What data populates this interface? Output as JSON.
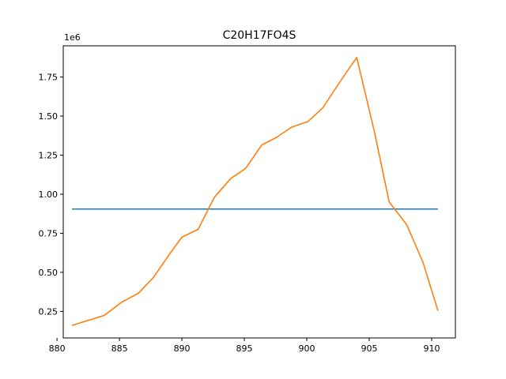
{
  "chart_data": {
    "type": "line",
    "title": "C20H17FO4S",
    "xlabel": "",
    "ylabel": "",
    "y_offset_label": "1e6",
    "xlim": [
      880.5,
      911.9
    ],
    "ylim": [
      0.08,
      1.95
    ],
    "x_ticks": [
      880,
      885,
      890,
      895,
      900,
      905,
      910
    ],
    "y_ticks": [
      0.25,
      0.5,
      0.75,
      1.0,
      1.25,
      1.5,
      1.75
    ],
    "y_tick_labels": [
      "0.25",
      "0.50",
      "0.75",
      "1.00",
      "1.25",
      "1.50",
      "1.75"
    ],
    "grid": false,
    "series": [
      {
        "color": "#1f77b4",
        "x": [
          881.2,
          910.5
        ],
        "y": [
          0.905,
          0.905
        ]
      },
      {
        "color": "#ff7f0e",
        "x": [
          881.2,
          883.8,
          885.2,
          886.5,
          887.7,
          889.0,
          890.0,
          891.3,
          892.6,
          893.9,
          895.1,
          896.4,
          897.6,
          898.8,
          900.1,
          901.3,
          902.7,
          904.0,
          905.4,
          906.6,
          908.0,
          909.3,
          910.5
        ],
        "y": [
          0.16,
          0.225,
          0.31,
          0.365,
          0.465,
          0.615,
          0.725,
          0.775,
          0.98,
          1.1,
          1.165,
          1.315,
          1.365,
          1.43,
          1.465,
          1.555,
          1.725,
          1.875,
          1.405,
          0.95,
          0.805,
          0.565,
          0.255
        ]
      }
    ]
  }
}
